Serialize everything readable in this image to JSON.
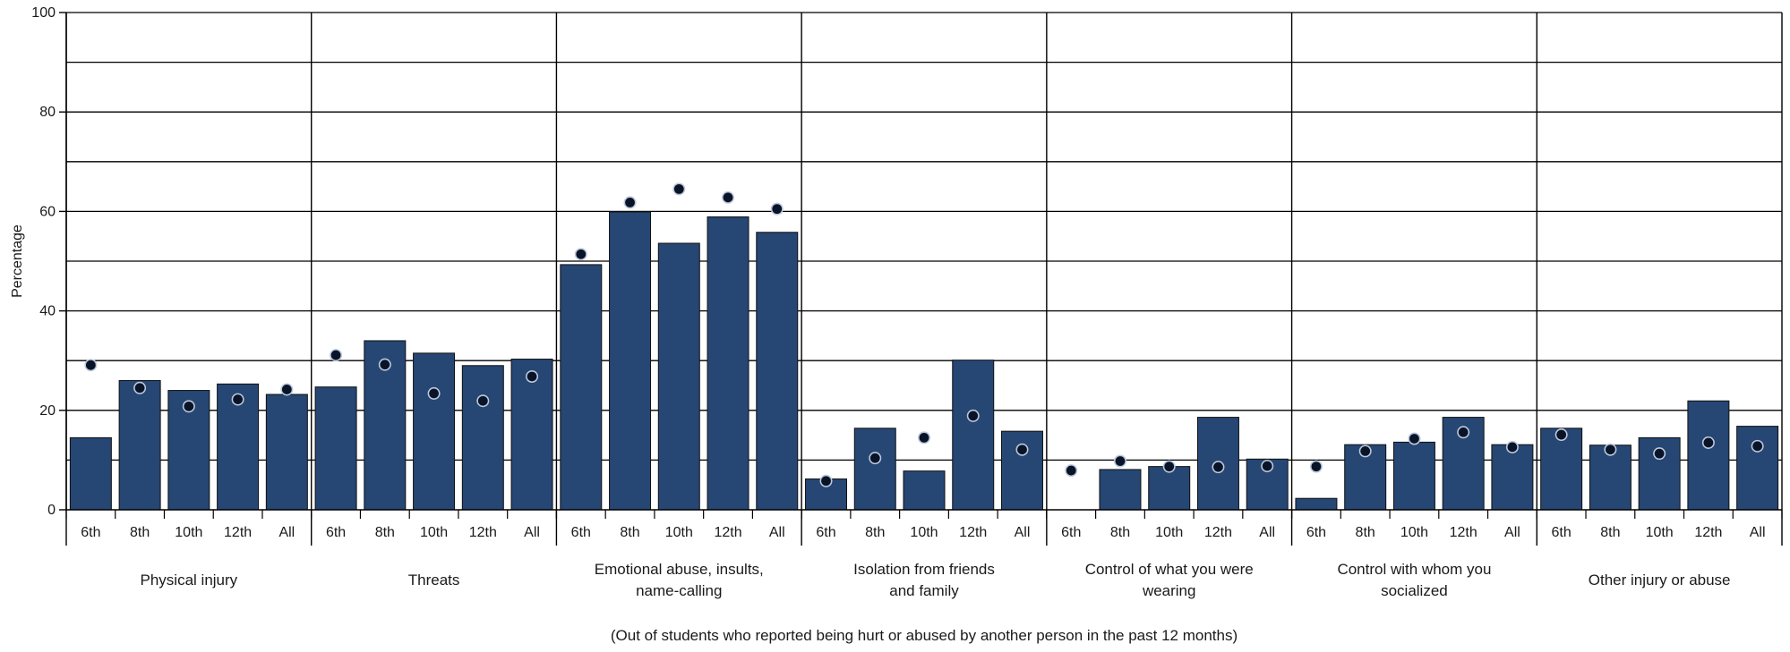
{
  "chart_data": {
    "type": "bar",
    "ylabel": "Percentage",
    "ylim": [
      0,
      100
    ],
    "yticks": [
      0,
      20,
      40,
      60,
      80,
      100
    ],
    "grid": true,
    "footnote": "(Out of students who reported being hurt or abused by another person in the past 12 months)",
    "colors": {
      "bar": "#264673",
      "bar_edge": "#111111",
      "dot": "#0a1428",
      "dot_edge": "#bcc8dc",
      "grid": "#000000"
    },
    "groups": [
      {
        "label_lines": [
          "Physical injury"
        ],
        "categories": [
          "6th",
          "8th",
          "10th",
          "12th",
          "All"
        ],
        "bars": [
          14.5,
          26,
          24,
          25.3,
          23.2
        ],
        "dots": [
          29.1,
          24.5,
          20.8,
          22.2,
          24.2
        ]
      },
      {
        "label_lines": [
          "Threats"
        ],
        "categories": [
          "6th",
          "8th",
          "10th",
          "12th",
          "All"
        ],
        "bars": [
          24.7,
          34,
          31.5,
          29,
          30.3
        ],
        "dots": [
          31.1,
          29.2,
          23.4,
          21.9,
          26.8
        ]
      },
      {
        "label_lines": [
          "Emotional abuse, insults,",
          "name-calling"
        ],
        "categories": [
          "6th",
          "8th",
          "10th",
          "12th",
          "All"
        ],
        "bars": [
          49.3,
          59.9,
          53.6,
          58.9,
          55.8
        ],
        "dots": [
          51.4,
          61.8,
          64.5,
          62.8,
          60.5
        ]
      },
      {
        "label_lines": [
          "Isolation from friends",
          "and family"
        ],
        "categories": [
          "6th",
          "8th",
          "10th",
          "12th",
          "All"
        ],
        "bars": [
          6.2,
          16.4,
          7.8,
          30.1,
          15.8
        ],
        "dots": [
          5.8,
          10.4,
          14.5,
          18.9,
          12.1
        ]
      },
      {
        "label_lines": [
          "Control of what you were",
          "wearing"
        ],
        "categories": [
          "6th",
          "8th",
          "10th",
          "12th",
          "All"
        ],
        "bars": [
          0,
          8.1,
          8.7,
          18.6,
          10.2
        ],
        "dots": [
          7.9,
          9.8,
          8.7,
          8.6,
          8.8
        ]
      },
      {
        "label_lines": [
          "Control with whom you",
          "socialized"
        ],
        "categories": [
          "6th",
          "8th",
          "10th",
          "12th",
          "All"
        ],
        "bars": [
          2.3,
          13.1,
          13.6,
          18.6,
          13.1
        ],
        "dots": [
          8.7,
          11.8,
          14.3,
          15.6,
          12.6
        ]
      },
      {
        "label_lines": [
          "Other injury or abuse"
        ],
        "categories": [
          "6th",
          "8th",
          "10th",
          "12th",
          "All"
        ],
        "bars": [
          16.4,
          13,
          14.5,
          21.9,
          16.8
        ],
        "dots": [
          15.1,
          12.1,
          11.3,
          13.5,
          12.8
        ]
      }
    ]
  }
}
